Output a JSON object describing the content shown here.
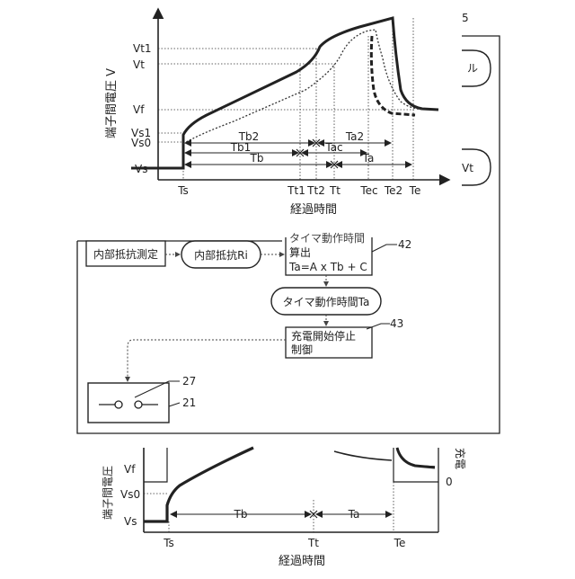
{
  "top_chart": {
    "y_axis_title": "端子間電圧 V",
    "x_axis_title": "経過時間",
    "y_ticks": [
      "Vt1",
      "Vt",
      "Vf",
      "Vs1",
      "Vs0",
      "Vs"
    ],
    "x_ticks": [
      "Ts",
      "Tt1",
      "Tt2",
      "Tt",
      "Tec",
      "Te2",
      "Te"
    ],
    "intervals": [
      "Tb2",
      "Ta2",
      "Tb1",
      "Tac",
      "Tb",
      "Ta"
    ]
  },
  "side_fragments": {
    "corner_number": "5",
    "upper_pill_text": "ル",
    "lower_pill_text": "Vt"
  },
  "flow": {
    "measure_label": "内部抵抗測定",
    "resistance_label": "内部抵抗Ri",
    "timer_calc_line1": "タイマ動作時間",
    "timer_calc_line2": "算出",
    "timer_calc_line3": "Ta=A x Tb + C",
    "timer_calc_ref": "42",
    "timer_time_label": "タイマ動作時間Ta",
    "control_line1": "充電開始停止",
    "control_line2": "制御",
    "control_ref": "43",
    "switch_ref": "27",
    "device_ref": "21"
  },
  "bottom_chart": {
    "y_axis_title": "端子間電圧",
    "y_ticks": [
      "Vf",
      "Vs0",
      "Vs"
    ],
    "x_ticks": [
      "Ts",
      "Tt",
      "Te"
    ],
    "intervals": [
      "Tb",
      "Ta"
    ],
    "x_axis_title": "経過時間",
    "right_label": "充電",
    "right_zero": "0"
  },
  "colors": {
    "line": "#222222",
    "background": "#ffffff"
  }
}
